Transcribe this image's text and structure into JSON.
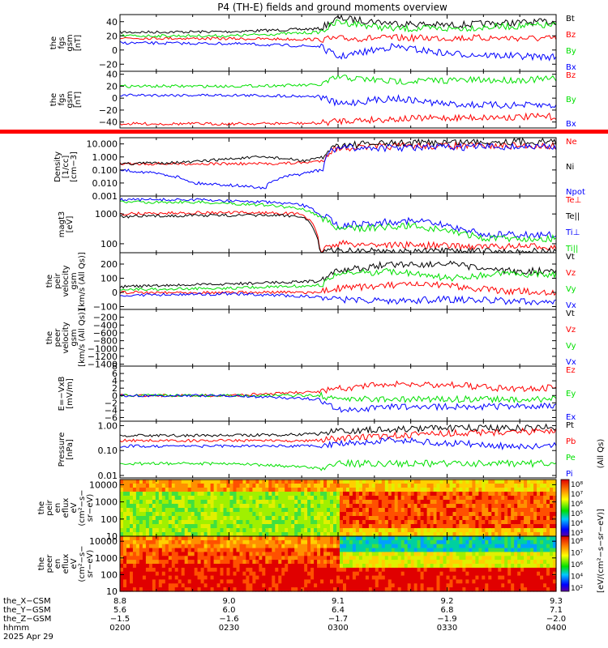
{
  "title": "P4 (TH-E) fields and ground moments overview",
  "colors": {
    "black": "#000000",
    "red": "#ff0000",
    "green": "#00e000",
    "blue": "#0000ff"
  },
  "panels": [
    {
      "ylabel": [
        "the",
        "fgs",
        "gsm",
        "[nT]"
      ],
      "ticks": [
        "40",
        "20",
        "0",
        "−20"
      ],
      "legend": [
        {
          "text": "Bt",
          "color": "black"
        },
        {
          "text": "Bz",
          "color": "red"
        },
        {
          "text": "By",
          "color": "green"
        },
        {
          "text": "Bx",
          "color": "blue"
        }
      ]
    },
    {
      "ylabel": [
        "the",
        "fgs",
        "gsm",
        "[nT]"
      ],
      "ticks": [
        "40",
        "20",
        "0",
        "−20",
        "−40"
      ],
      "legend": [
        {
          "text": "Bz",
          "color": "red"
        },
        {
          "text": "By",
          "color": "green"
        },
        {
          "text": "Bx",
          "color": "blue"
        }
      ]
    },
    {
      "ylabel": [
        "Density",
        "[1/cc]",
        "[cm−3]"
      ],
      "ticks": [
        "10.000",
        "1.000",
        "0.100",
        "0.010",
        "0.001"
      ],
      "legend": [
        {
          "text": "Ne",
          "color": "red"
        },
        {
          "text": "Ni",
          "color": "black"
        },
        {
          "text": "Npot",
          "color": "blue"
        }
      ]
    },
    {
      "ylabel": [
        "magt3",
        "[eV]"
      ],
      "ticks": [
        "1000",
        "100"
      ],
      "legend": [
        {
          "text": "Te⊥",
          "color": "red"
        },
        {
          "text": "Te||",
          "color": "black"
        },
        {
          "text": "Ti⊥",
          "color": "blue"
        },
        {
          "text": "Ti||",
          "color": "green"
        }
      ]
    },
    {
      "ylabel": [
        "the",
        "peir",
        "velocity",
        "gsm",
        "[km/s (All Qs)]"
      ],
      "ticks": [
        "200",
        "100",
        "0",
        "−100"
      ],
      "legend": [
        {
          "text": "Vt",
          "color": "black"
        },
        {
          "text": "Vz",
          "color": "red"
        },
        {
          "text": "Vy",
          "color": "green"
        },
        {
          "text": "Vx",
          "color": "blue"
        }
      ]
    },
    {
      "ylabel": [
        "the",
        "peer",
        "velocity",
        "gsm",
        "[km/s (All Qs)]"
      ],
      "ticks": [
        "−200",
        "−400",
        "−600",
        "−800",
        "−1000",
        "−1200",
        "−1400"
      ],
      "legend": [
        {
          "text": "Vt",
          "color": "black"
        },
        {
          "text": "Vz",
          "color": "red"
        },
        {
          "text": "Vy",
          "color": "green"
        },
        {
          "text": "Vx",
          "color": "blue"
        }
      ]
    },
    {
      "ylabel": [
        "E=−VxB",
        "[mV/m]"
      ],
      "ticks": [
        "8",
        "6",
        "4",
        "2",
        "0",
        "−2",
        "−4",
        "−6"
      ],
      "legend": [
        {
          "text": "Ez",
          "color": "red"
        },
        {
          "text": "Ey",
          "color": "green"
        },
        {
          "text": "Ex",
          "color": "blue"
        }
      ]
    },
    {
      "ylabel": [
        "Pressure",
        "[nPa]"
      ],
      "ticks": [
        "1.00",
        "0.10",
        "0.01"
      ],
      "legend": [
        {
          "text": "Pt",
          "color": "black"
        },
        {
          "text": "Pb",
          "color": "red"
        },
        {
          "text": "Pe",
          "color": "green"
        },
        {
          "text": "Pi",
          "color": "blue"
        }
      ]
    },
    {
      "ylabel": [
        "the",
        "peir",
        "en",
        "eflux",
        "eV",
        "(cm²−s−",
        "sr−eV)"
      ],
      "ticks": [
        "10000",
        "1000",
        "100",
        "10"
      ]
    },
    {
      "ylabel": [
        "the",
        "peer",
        "en",
        "eflux",
        "eV",
        "(cm²−s−",
        "sr−eV)"
      ],
      "ticks": [
        "10000",
        "1000",
        "100",
        "10"
      ]
    }
  ],
  "colorbar": {
    "ticks_top": [
      "10⁸",
      "10⁷",
      "10⁶",
      "10⁵",
      "10⁴",
      "10³"
    ],
    "ticks_bottom": [
      "10⁸",
      "10⁷",
      "10⁶",
      "10⁴",
      "10²"
    ],
    "label": "[eV/(cm²−s−sr−eV)]",
    "label2": "(All Qs)"
  },
  "x_axis": {
    "row_labels": [
      "the_X−CSM",
      "the_Y−GSM",
      "the_Z−GSM",
      "hhmm",
      "2025 Apr 29"
    ],
    "ticks": [
      {
        "x": "8.8",
        "y": "5.6",
        "z": "−1.5",
        "t": "0200"
      },
      {
        "x": "9.0",
        "y": "6.0",
        "z": "−1.6",
        "t": "0230"
      },
      {
        "x": "9.1",
        "y": "6.4",
        "z": "−1.7",
        "t": "0300"
      },
      {
        "x": "9.2",
        "y": "6.8",
        "z": "−1.9",
        "t": "0330"
      },
      {
        "x": "9.3",
        "y": "7.1",
        "z": "−2.0",
        "t": "0400"
      }
    ]
  },
  "chart_data": {
    "type": "line",
    "title": "P4 (TH-E) fields and ground moments overview",
    "x_unit": "hhmm (UT), 2025 Apr 29",
    "x_range": [
      "0200",
      "0400"
    ],
    "xticks": [
      "0200",
      "0230",
      "0300",
      "0330",
      "0400"
    ],
    "panels": [
      {
        "name": "the fgs gsm [nT]",
        "ylim": [
          -30,
          50
        ],
        "yticks": [
          40,
          20,
          0,
          -20
        ],
        "x": [
          "0200",
          "0230",
          "0255",
          "0300",
          "0315",
          "0330",
          "0345",
          "0400"
        ],
        "series": [
          {
            "name": "Bt",
            "values": [
              25,
              26,
              30,
              45,
              38,
              35,
              38,
              40
            ]
          },
          {
            "name": "Bz",
            "values": [
              17,
              16,
              15,
              16,
              17,
              17,
              17,
              16
            ]
          },
          {
            "name": "By",
            "values": [
              20,
              20,
              25,
              40,
              30,
              30,
              33,
              35
            ]
          },
          {
            "name": "Bx",
            "values": [
              10,
              9,
              5,
              -10,
              5,
              -5,
              -8,
              -10
            ]
          }
        ]
      },
      {
        "name": "the fgs gsm [nT]",
        "ylim": [
          -50,
          45
        ],
        "yticks": [
          40,
          20,
          0,
          -20,
          -40
        ],
        "x": [
          "0200",
          "0230",
          "0255",
          "0300",
          "0315",
          "0330",
          "0345",
          "0400"
        ],
        "series": [
          {
            "name": "Bz",
            "values": [
              -43,
              -43,
              -42,
              -38,
              -35,
              -33,
              -32,
              -31
            ]
          },
          {
            "name": "By",
            "values": [
              20,
              20,
              22,
              35,
              28,
              30,
              30,
              32
            ]
          },
          {
            "name": "Bx",
            "values": [
              5,
              5,
              3,
              -10,
              0,
              -10,
              -12,
              -12
            ]
          }
        ]
      },
      {
        "name": "Density",
        "ylim": [
          0.001,
          30
        ],
        "scale": "log",
        "yticks": [
          10,
          1,
          0.1,
          0.01,
          0.001
        ],
        "x": [
          "0200",
          "0220",
          "0240",
          "0250",
          "0256",
          "0300",
          "0320",
          "0340",
          "0400"
        ],
        "series": [
          {
            "name": "Ne",
            "values": [
              0.3,
              0.3,
              0.3,
              0.35,
              0.5,
              5,
              7,
              7,
              7
            ]
          },
          {
            "name": "Ni",
            "values": [
              0.3,
              0.4,
              1.0,
              0.5,
              0.8,
              8,
              12,
              15,
              15
            ]
          },
          {
            "name": "Npot",
            "values": [
              0.1,
              0.01,
              0.004,
              0.05,
              0.1,
              5,
              5,
              6,
              6
            ]
          }
        ]
      },
      {
        "name": "magt3 [eV]",
        "ylim": [
          50,
          4000
        ],
        "scale": "log",
        "yticks": [
          1000,
          100
        ],
        "x": [
          "0200",
          "0220",
          "0240",
          "0250",
          "0255",
          "0300",
          "0320",
          "0340",
          "0400"
        ],
        "series": [
          {
            "name": "Te⊥",
            "values": [
              1000,
              1100,
              1100,
              1000,
              60,
              100,
              90,
              80,
              80
            ]
          },
          {
            "name": "Te||",
            "values": [
              800,
              900,
              900,
              850,
              50,
              60,
              55,
              55,
              55
            ]
          },
          {
            "name": "Ti⊥",
            "values": [
              3000,
              3000,
              2500,
              2000,
              1000,
              400,
              600,
              200,
              200
            ]
          },
          {
            "name": "Ti||",
            "values": [
              2500,
              2500,
              2000,
              1500,
              800,
              300,
              400,
              150,
              150
            ]
          }
        ]
      },
      {
        "name": "the peir velocity gsm [km/s (All Qs)]",
        "ylim": [
          -120,
          280
        ],
        "yticks": [
          200,
          100,
          0,
          -100
        ],
        "x": [
          "0200",
          "0230",
          "0255",
          "0300",
          "0315",
          "0330",
          "0345",
          "0400"
        ],
        "series": [
          {
            "name": "Vt",
            "values": [
              40,
              60,
              80,
              150,
              200,
              200,
              150,
              150
            ]
          },
          {
            "name": "Vz",
            "values": [
              0,
              0,
              0,
              30,
              50,
              50,
              10,
              0
            ]
          },
          {
            "name": "Vy",
            "values": [
              20,
              30,
              50,
              130,
              150,
              100,
              130,
              130
            ]
          },
          {
            "name": "Vx",
            "values": [
              -20,
              -10,
              -30,
              -50,
              -60,
              -50,
              -60,
              -70
            ]
          }
        ]
      },
      {
        "name": "the peer velocity gsm [km/s (All Qs)]",
        "ylim": [
          -1450,
          0
        ],
        "yticks": [
          -200,
          -400,
          -600,
          -800,
          -1000,
          -1200,
          -1400
        ],
        "series": []
      },
      {
        "name": "E=−VxB [mV/m]",
        "ylim": [
          -7,
          8
        ],
        "yticks": [
          8,
          6,
          4,
          2,
          0,
          -2,
          -4,
          -6
        ],
        "x": [
          "0200",
          "0230",
          "0255",
          "0300",
          "0315",
          "0330",
          "0345",
          "0400"
        ],
        "series": [
          {
            "name": "Ez",
            "values": [
              0,
              0,
              1,
              2,
              3,
              3,
              2,
              2
            ]
          },
          {
            "name": "Ey",
            "values": [
              0,
              0,
              0,
              -1,
              -1,
              -1,
              -1,
              -1
            ]
          },
          {
            "name": "Ex",
            "values": [
              0,
              0,
              -1,
              -4,
              -3,
              -3,
              -3,
              -3
            ]
          }
        ]
      },
      {
        "name": "Pressure [nPa]",
        "ylim": [
          0.008,
          1.5
        ],
        "scale": "log",
        "yticks": [
          1.0,
          0.1,
          0.01
        ],
        "x": [
          "0200",
          "0230",
          "0255",
          "0300",
          "0315",
          "0330",
          "0345",
          "0400"
        ],
        "series": [
          {
            "name": "Pt",
            "values": [
              0.4,
              0.4,
              0.45,
              0.6,
              0.7,
              0.8,
              0.8,
              0.85
            ]
          },
          {
            "name": "Pb",
            "values": [
              0.25,
              0.25,
              0.25,
              0.3,
              0.4,
              0.5,
              0.55,
              0.6
            ]
          },
          {
            "name": "Pe",
            "values": [
              0.03,
              0.03,
              0.02,
              0.03,
              0.03,
              0.03,
              0.03,
              0.03
            ]
          },
          {
            "name": "Pi",
            "values": [
              0.15,
              0.15,
              0.15,
              0.2,
              0.25,
              0.2,
              0.15,
              0.15
            ]
          }
        ]
      },
      {
        "name": "the peir en eflux",
        "type": "heatmap",
        "ylim": [
          10,
          20000
        ],
        "scale": "log",
        "yticks": [
          10000,
          1000,
          100,
          10
        ]
      },
      {
        "name": "the peer en eflux",
        "type": "heatmap",
        "ylim": [
          10,
          20000
        ],
        "scale": "log",
        "yticks": [
          10000,
          1000,
          100,
          10
        ]
      }
    ]
  }
}
